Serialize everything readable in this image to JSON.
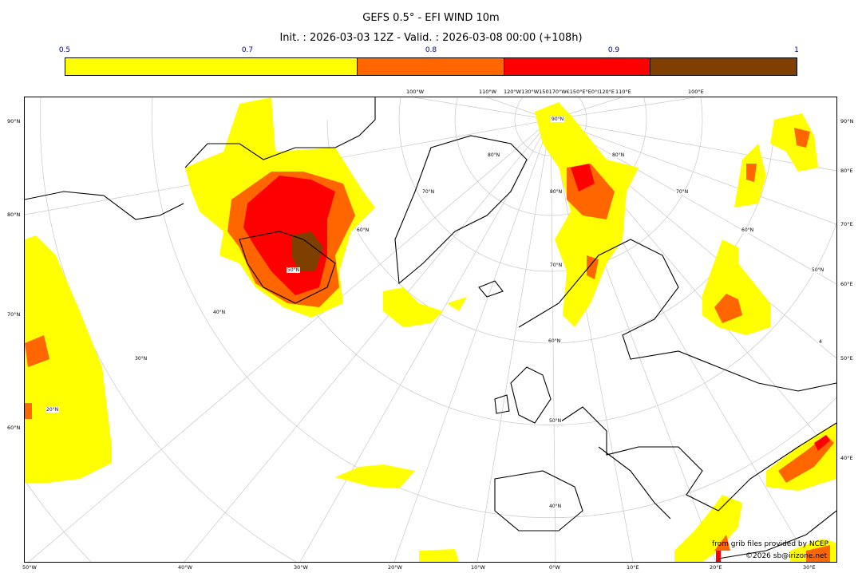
{
  "title": "GEFS 0.5° - EFI WIND 10m",
  "subtitle": "Init. : 2026-03-03 12Z - Valid. : 2026-03-08 00:00 (+108h)",
  "colorbar": {
    "ticks": [
      "0.5",
      "0.7",
      "0.8",
      "0.9",
      "1"
    ],
    "bins": [
      {
        "from": 0.5,
        "to": 0.7,
        "color": "#ffff00"
      },
      {
        "from": 0.7,
        "to": 0.8,
        "color": "#ff6600"
      },
      {
        "from": 0.8,
        "to": 0.9,
        "color": "#ff0000"
      },
      {
        "from": 0.9,
        "to": 1.0,
        "color": "#7f3f00"
      }
    ]
  },
  "axes": {
    "left": [
      "90°N",
      "80°N",
      "70°N",
      "60°N"
    ],
    "right": [
      "90°N",
      "80°E",
      "70°E",
      "60°E",
      "50°E",
      "40°E"
    ],
    "bottom": [
      "50°W",
      "40°W",
      "30°W",
      "20°W",
      "10°W",
      "0°W",
      "10°E",
      "20°E",
      "30°E"
    ],
    "top": [
      "100°W",
      "110°W",
      "120°W130°W150170°W€150°E°E0°I120°E",
      "110°E",
      "100°E"
    ]
  },
  "interior_labels": [
    "90°N",
    "80°N",
    "80°N",
    "80°N",
    "70°N",
    "70°N",
    "70°N",
    "60°N",
    "60°N",
    "60°N",
    "50°N",
    "50°N",
    "50°N",
    "40°N",
    "40°N",
    "30°N",
    "20°N",
    "4"
  ],
  "credits": {
    "source": "from grib files provided by NCEP",
    "copyright": "©2026 sb@irizone.net"
  }
}
